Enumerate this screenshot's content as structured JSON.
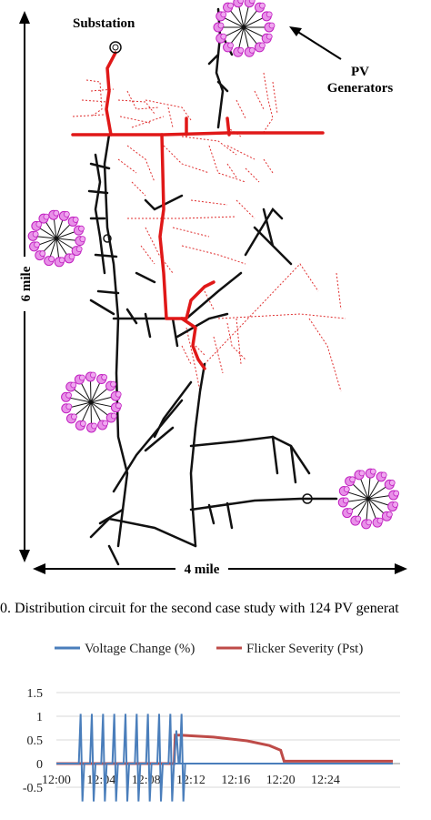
{
  "map": {
    "substation_label": "Substation",
    "pv_label_line1": "PV",
    "pv_label_line2": "Generators",
    "height_label": "6 mile",
    "width_label": "4 mile",
    "caption": "0.    Distribution circuit for the second case study with 124 PV generat"
  },
  "chart_data": {
    "type": "line",
    "series": [
      {
        "name": "Voltage Change (%)",
        "color": "#4a7ebb"
      },
      {
        "name": "Flicker Severity (Pst)",
        "color": "#be4b48"
      }
    ],
    "x_tick_labels": [
      "12:00",
      "12:04",
      "12:08",
      "12:12",
      "12:16",
      "12:20",
      "12:24"
    ],
    "y_tick_labels": [
      "1.5",
      "1",
      "0.5",
      "0",
      "-0.5"
    ],
    "ylim": [
      -0.8,
      1.5
    ],
    "xlim_minutes": [
      0,
      30
    ],
    "voltage_pulses_start_min": [
      2,
      3,
      4,
      5,
      6,
      7,
      8,
      9,
      10,
      11
    ],
    "voltage_pulse_high": 1.05,
    "voltage_pulse_low": -0.8,
    "flicker": {
      "x_min": [
        0,
        10.5,
        10.6,
        11,
        14,
        17,
        19,
        20,
        20.3,
        30
      ],
      "y": [
        0.0,
        0.0,
        0.6,
        0.6,
        0.56,
        0.48,
        0.38,
        0.28,
        0.05,
        0.05
      ]
    },
    "legend_position": "top"
  }
}
